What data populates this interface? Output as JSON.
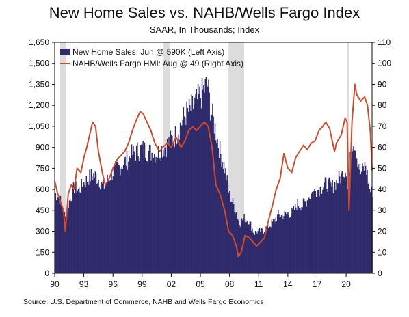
{
  "title": "New Home Sales vs. NAHB/Wells Fargo Index",
  "subtitle": "SAAR, In Thousands; Index",
  "source": "Source: U.S. Department of Commerce, NAHB and Wells Fargo Economics",
  "colors": {
    "sales": "#2f2a6b",
    "hmi": "#d24a2a",
    "recession": "#dcdcdc",
    "axis": "#111111"
  },
  "chart_data": {
    "type": "bar",
    "x_start_year": 1990,
    "x_end_year": 2022.67,
    "x_tick_labels": [
      "90",
      "93",
      "96",
      "99",
      "02",
      "05",
      "08",
      "11",
      "14",
      "17",
      "20"
    ],
    "x_tick_years": [
      1990,
      1993,
      1996,
      1999,
      2002,
      2005,
      2008,
      2011,
      2014,
      2017,
      2020
    ],
    "left_axis": {
      "ylim": [
        0,
        1650
      ],
      "ticks": [
        0,
        150,
        300,
        450,
        600,
        750,
        900,
        "1,050",
        "1,200",
        "1,350",
        "1,500",
        "1,650"
      ]
    },
    "right_axis": {
      "ylim": [
        0,
        110
      ],
      "ticks": [
        0,
        10,
        20,
        30,
        40,
        50,
        60,
        70,
        80,
        90,
        100,
        110
      ]
    },
    "recessions": [
      [
        1990.5,
        1991.2
      ],
      [
        2001.2,
        2001.9
      ],
      [
        2007.9,
        2009.5
      ],
      [
        2020.1,
        2020.3
      ]
    ],
    "series": [
      {
        "name": "New Home Sales: Jun @ 590K (Left Axis)",
        "axis": "left",
        "kind": "bar",
        "points": [
          [
            1990.0,
            580
          ],
          [
            1990.5,
            540
          ],
          [
            1991.0,
            430
          ],
          [
            1991.5,
            520
          ],
          [
            1992.0,
            620
          ],
          [
            1992.5,
            600
          ],
          [
            1993.0,
            650
          ],
          [
            1993.5,
            690
          ],
          [
            1994.0,
            710
          ],
          [
            1994.5,
            680
          ],
          [
            1995.0,
            620
          ],
          [
            1995.5,
            680
          ],
          [
            1996.0,
            730
          ],
          [
            1996.5,
            760
          ],
          [
            1997.0,
            790
          ],
          [
            1997.5,
            820
          ],
          [
            1998.0,
            860
          ],
          [
            1998.5,
            880
          ],
          [
            1999.0,
            900
          ],
          [
            1999.5,
            880
          ],
          [
            2000.0,
            870
          ],
          [
            2000.5,
            860
          ],
          [
            2001.0,
            900
          ],
          [
            2001.5,
            920
          ],
          [
            2002.0,
            960
          ],
          [
            2002.5,
            1000
          ],
          [
            2003.0,
            1080
          ],
          [
            2003.5,
            1150
          ],
          [
            2004.0,
            1180
          ],
          [
            2004.5,
            1230
          ],
          [
            2005.0,
            1280
          ],
          [
            2005.5,
            1340
          ],
          [
            2005.75,
            1360
          ],
          [
            2006.0,
            1200
          ],
          [
            2006.5,
            1050
          ],
          [
            2007.0,
            880
          ],
          [
            2007.5,
            760
          ],
          [
            2008.0,
            560
          ],
          [
            2008.5,
            480
          ],
          [
            2009.0,
            360
          ],
          [
            2009.5,
            400
          ],
          [
            2010.0,
            380
          ],
          [
            2010.5,
            290
          ],
          [
            2011.0,
            300
          ],
          [
            2011.5,
            310
          ],
          [
            2012.0,
            340
          ],
          [
            2012.5,
            370
          ],
          [
            2013.0,
            420
          ],
          [
            2013.5,
            420
          ],
          [
            2014.0,
            430
          ],
          [
            2014.5,
            440
          ],
          [
            2015.0,
            500
          ],
          [
            2015.5,
            490
          ],
          [
            2016.0,
            530
          ],
          [
            2016.5,
            580
          ],
          [
            2017.0,
            600
          ],
          [
            2017.5,
            620
          ],
          [
            2018.0,
            650
          ],
          [
            2018.5,
            620
          ],
          [
            2019.0,
            660
          ],
          [
            2019.5,
            700
          ],
          [
            2020.0,
            760
          ],
          [
            2020.2,
            580
          ],
          [
            2020.5,
            900
          ],
          [
            2020.75,
            980
          ],
          [
            2021.0,
            880
          ],
          [
            2021.5,
            720
          ],
          [
            2022.0,
            780
          ],
          [
            2022.3,
            650
          ],
          [
            2022.5,
            590
          ]
        ]
      },
      {
        "name": "NAHB/Wells Fargo HMI: Aug @ 49 (Right Axis)",
        "axis": "right",
        "kind": "line",
        "points": [
          [
            1990.0,
            44
          ],
          [
            1990.3,
            38
          ],
          [
            1990.6,
            34
          ],
          [
            1990.9,
            30
          ],
          [
            1991.1,
            20
          ],
          [
            1991.4,
            38
          ],
          [
            1991.7,
            42
          ],
          [
            1992.0,
            40
          ],
          [
            1992.3,
            50
          ],
          [
            1992.7,
            48
          ],
          [
            1993.0,
            55
          ],
          [
            1993.3,
            60
          ],
          [
            1993.6,
            66
          ],
          [
            1993.9,
            72
          ],
          [
            1994.2,
            70
          ],
          [
            1994.5,
            58
          ],
          [
            1994.9,
            48
          ],
          [
            1995.2,
            42
          ],
          [
            1995.6,
            45
          ],
          [
            1996.0,
            50
          ],
          [
            1996.4,
            54
          ],
          [
            1996.8,
            56
          ],
          [
            1997.2,
            58
          ],
          [
            1997.6,
            62
          ],
          [
            1998.0,
            68
          ],
          [
            1998.4,
            73
          ],
          [
            1998.8,
            77
          ],
          [
            1999.1,
            76
          ],
          [
            1999.5,
            72
          ],
          [
            1999.9,
            68
          ],
          [
            2000.3,
            62
          ],
          [
            2000.8,
            58
          ],
          [
            2001.1,
            60
          ],
          [
            2001.6,
            62
          ],
          [
            2002.0,
            60
          ],
          [
            2002.5,
            65
          ],
          [
            2003.0,
            60
          ],
          [
            2003.4,
            63
          ],
          [
            2003.8,
            68
          ],
          [
            2004.2,
            70
          ],
          [
            2004.6,
            68
          ],
          [
            2005.0,
            70
          ],
          [
            2005.4,
            72
          ],
          [
            2005.8,
            70
          ],
          [
            2006.2,
            60
          ],
          [
            2006.6,
            42
          ],
          [
            2007.0,
            38
          ],
          [
            2007.5,
            30
          ],
          [
            2007.9,
            20
          ],
          [
            2008.3,
            18
          ],
          [
            2008.7,
            13
          ],
          [
            2008.9,
            8
          ],
          [
            2009.2,
            10
          ],
          [
            2009.6,
            18
          ],
          [
            2010.0,
            17
          ],
          [
            2010.4,
            15
          ],
          [
            2010.8,
            13
          ],
          [
            2011.2,
            15
          ],
          [
            2011.6,
            17
          ],
          [
            2012.0,
            25
          ],
          [
            2012.4,
            32
          ],
          [
            2012.8,
            40
          ],
          [
            2013.2,
            45
          ],
          [
            2013.6,
            57
          ],
          [
            2014.0,
            50
          ],
          [
            2014.4,
            48
          ],
          [
            2014.8,
            55
          ],
          [
            2015.2,
            58
          ],
          [
            2015.6,
            61
          ],
          [
            2016.0,
            59
          ],
          [
            2016.4,
            62
          ],
          [
            2016.8,
            63
          ],
          [
            2017.2,
            68
          ],
          [
            2017.6,
            70
          ],
          [
            2017.9,
            72
          ],
          [
            2018.3,
            69
          ],
          [
            2018.8,
            58
          ],
          [
            2019.0,
            62
          ],
          [
            2019.5,
            66
          ],
          [
            2019.9,
            74
          ],
          [
            2020.1,
            72
          ],
          [
            2020.3,
            30
          ],
          [
            2020.6,
            72
          ],
          [
            2020.9,
            90
          ],
          [
            2021.1,
            85
          ],
          [
            2021.5,
            82
          ],
          [
            2021.9,
            84
          ],
          [
            2022.2,
            80
          ],
          [
            2022.5,
            67
          ],
          [
            2022.67,
            49
          ]
        ]
      }
    ]
  }
}
